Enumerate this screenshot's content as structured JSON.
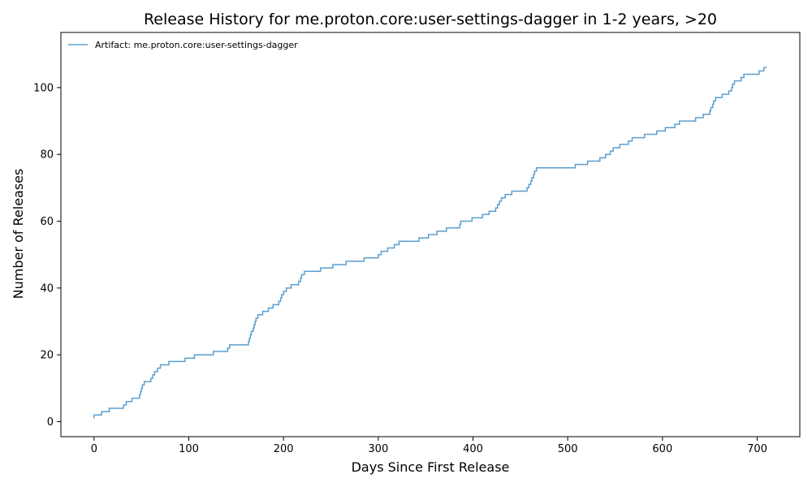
{
  "chart_data": {
    "type": "line",
    "title": "Release History for me.proton.core:user-settings-dagger in 1-2 years, >20",
    "xlabel": "Days Since First Release",
    "ylabel": "Number of Releases",
    "xlim": [
      -35,
      745
    ],
    "ylim": [
      -4.5,
      116.5
    ],
    "xticks": [
      0,
      100,
      200,
      300,
      400,
      500,
      600,
      700
    ],
    "yticks": [
      0,
      20,
      40,
      60,
      80,
      100
    ],
    "grid": false,
    "legend_position": "top-left",
    "series": [
      {
        "name": "Artifact: me.proton.core:user-settings-dagger",
        "color": "#5b9fd0",
        "step": "post",
        "x": [
          0,
          8,
          16,
          31,
          34,
          40,
          48,
          49,
          50,
          51,
          53,
          60,
          62,
          64,
          67,
          70,
          73,
          79,
          96,
          106,
          108,
          126,
          141,
          143,
          163,
          164,
          165,
          166,
          168,
          169,
          170,
          171,
          173,
          178,
          184,
          189,
          195,
          197,
          198,
          200,
          203,
          208,
          216,
          218,
          219,
          222,
          239,
          252,
          266,
          285,
          300,
          303,
          310,
          317,
          322,
          343,
          353,
          362,
          372,
          386,
          387,
          399,
          410,
          417,
          424,
          426,
          428,
          430,
          434,
          441,
          457,
          459,
          461,
          462,
          464,
          465,
          467,
          508,
          521,
          534,
          540,
          545,
          548,
          555,
          564,
          568,
          581,
          594,
          603,
          613,
          618,
          635,
          643,
          650,
          651,
          653,
          654,
          656,
          663,
          670,
          673,
          674,
          676,
          683,
          686,
          702,
          707
        ],
        "y": [
          2,
          3,
          4,
          5,
          6,
          7,
          8,
          9,
          10,
          11,
          12,
          13,
          14,
          15,
          16,
          17,
          17,
          18,
          19,
          20,
          20,
          21,
          22,
          23,
          24,
          25,
          26,
          27,
          28,
          29,
          30,
          31,
          32,
          33,
          34,
          35,
          36,
          37,
          38,
          39,
          40,
          41,
          42,
          43,
          44,
          45,
          46,
          47,
          48,
          49,
          50,
          51,
          52,
          53,
          54,
          55,
          56,
          57,
          58,
          59,
          60,
          61,
          62,
          63,
          64,
          65,
          66,
          67,
          68,
          69,
          70,
          71,
          72,
          73,
          74,
          75,
          76,
          77,
          78,
          79,
          80,
          81,
          82,
          83,
          84,
          85,
          86,
          87,
          88,
          89,
          90,
          91,
          92,
          93,
          94,
          95,
          96,
          97,
          98,
          99,
          100,
          101,
          102,
          103,
          104,
          105,
          106
        ]
      }
    ]
  }
}
